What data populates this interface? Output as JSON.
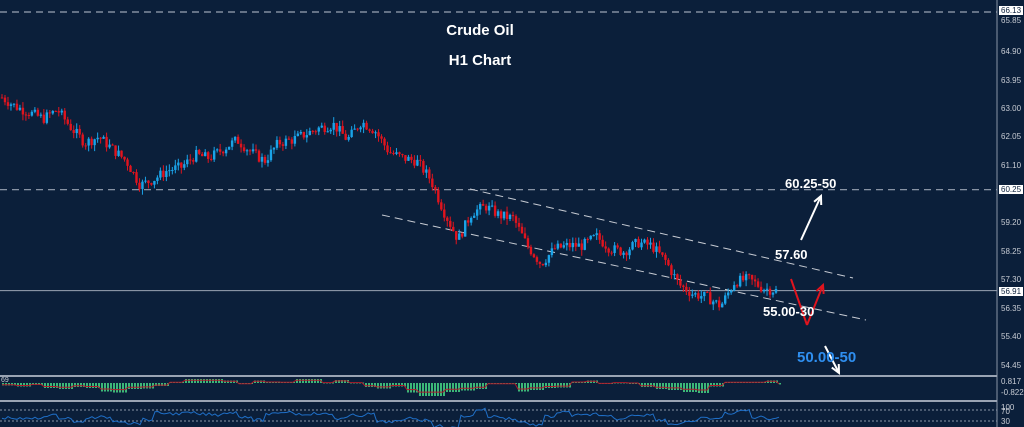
{
  "chart_data": {
    "type": "candlestick",
    "title": "Crude Oil",
    "subtitle": "H1 Chart",
    "xlabel": "",
    "ylabel": "",
    "ylim": [
      54.2,
      66.3
    ],
    "y_ticks": [
      "65.85",
      "64.90",
      "63.95",
      "63.00",
      "62.05",
      "61.10",
      "59.20",
      "58.25",
      "57.30",
      "56.35",
      "55.40",
      "54.45"
    ],
    "price_labels": {
      "top_line": "66.13",
      "resistance_line": "60.25",
      "current_price": "56.91"
    },
    "approx_close_path": [
      63.3,
      63.0,
      62.8,
      62.6,
      62.9,
      62.3,
      61.8,
      62.0,
      61.6,
      61.2,
      60.4,
      60.6,
      60.9,
      61.0,
      61.4,
      61.3,
      61.6,
      61.9,
      61.5,
      61.2,
      61.8,
      61.9,
      62.1,
      62.3,
      62.4,
      61.9,
      62.5,
      62.2,
      61.5,
      61.3,
      61.2,
      60.6,
      59.5,
      58.6,
      59.5,
      59.7,
      59.4,
      59.3,
      58.4,
      57.8,
      58.3,
      58.4,
      58.4,
      58.7,
      58.3,
      58.2,
      58.5,
      58.4,
      57.9,
      57.1,
      56.8,
      56.7,
      56.4,
      57.2,
      57.3,
      57.0,
      56.91
    ],
    "annotations": [
      {
        "text": "60.25-50",
        "meaning": "upside target"
      },
      {
        "text": "57.60",
        "meaning": "channel resistance"
      },
      {
        "text": "55.00-30",
        "meaning": "channel support"
      },
      {
        "text": "50.00-50",
        "meaning": "extended downside target"
      }
    ],
    "indicators": [
      {
        "name": "MACD",
        "ticks": [
          "0.817",
          "0.00",
          "-0.822"
        ],
        "left_label": "69"
      },
      {
        "name": "RSI",
        "ticks": [
          "100",
          "70",
          "30",
          "0"
        ]
      }
    ],
    "colors": {
      "background": "#0b1f3a",
      "bull": "#1aa3e8",
      "bear": "#e0141e",
      "macd_hist": "#3cb878",
      "macd_signal": "#b01c2a",
      "rsi": "#1f6fc7"
    }
  }
}
